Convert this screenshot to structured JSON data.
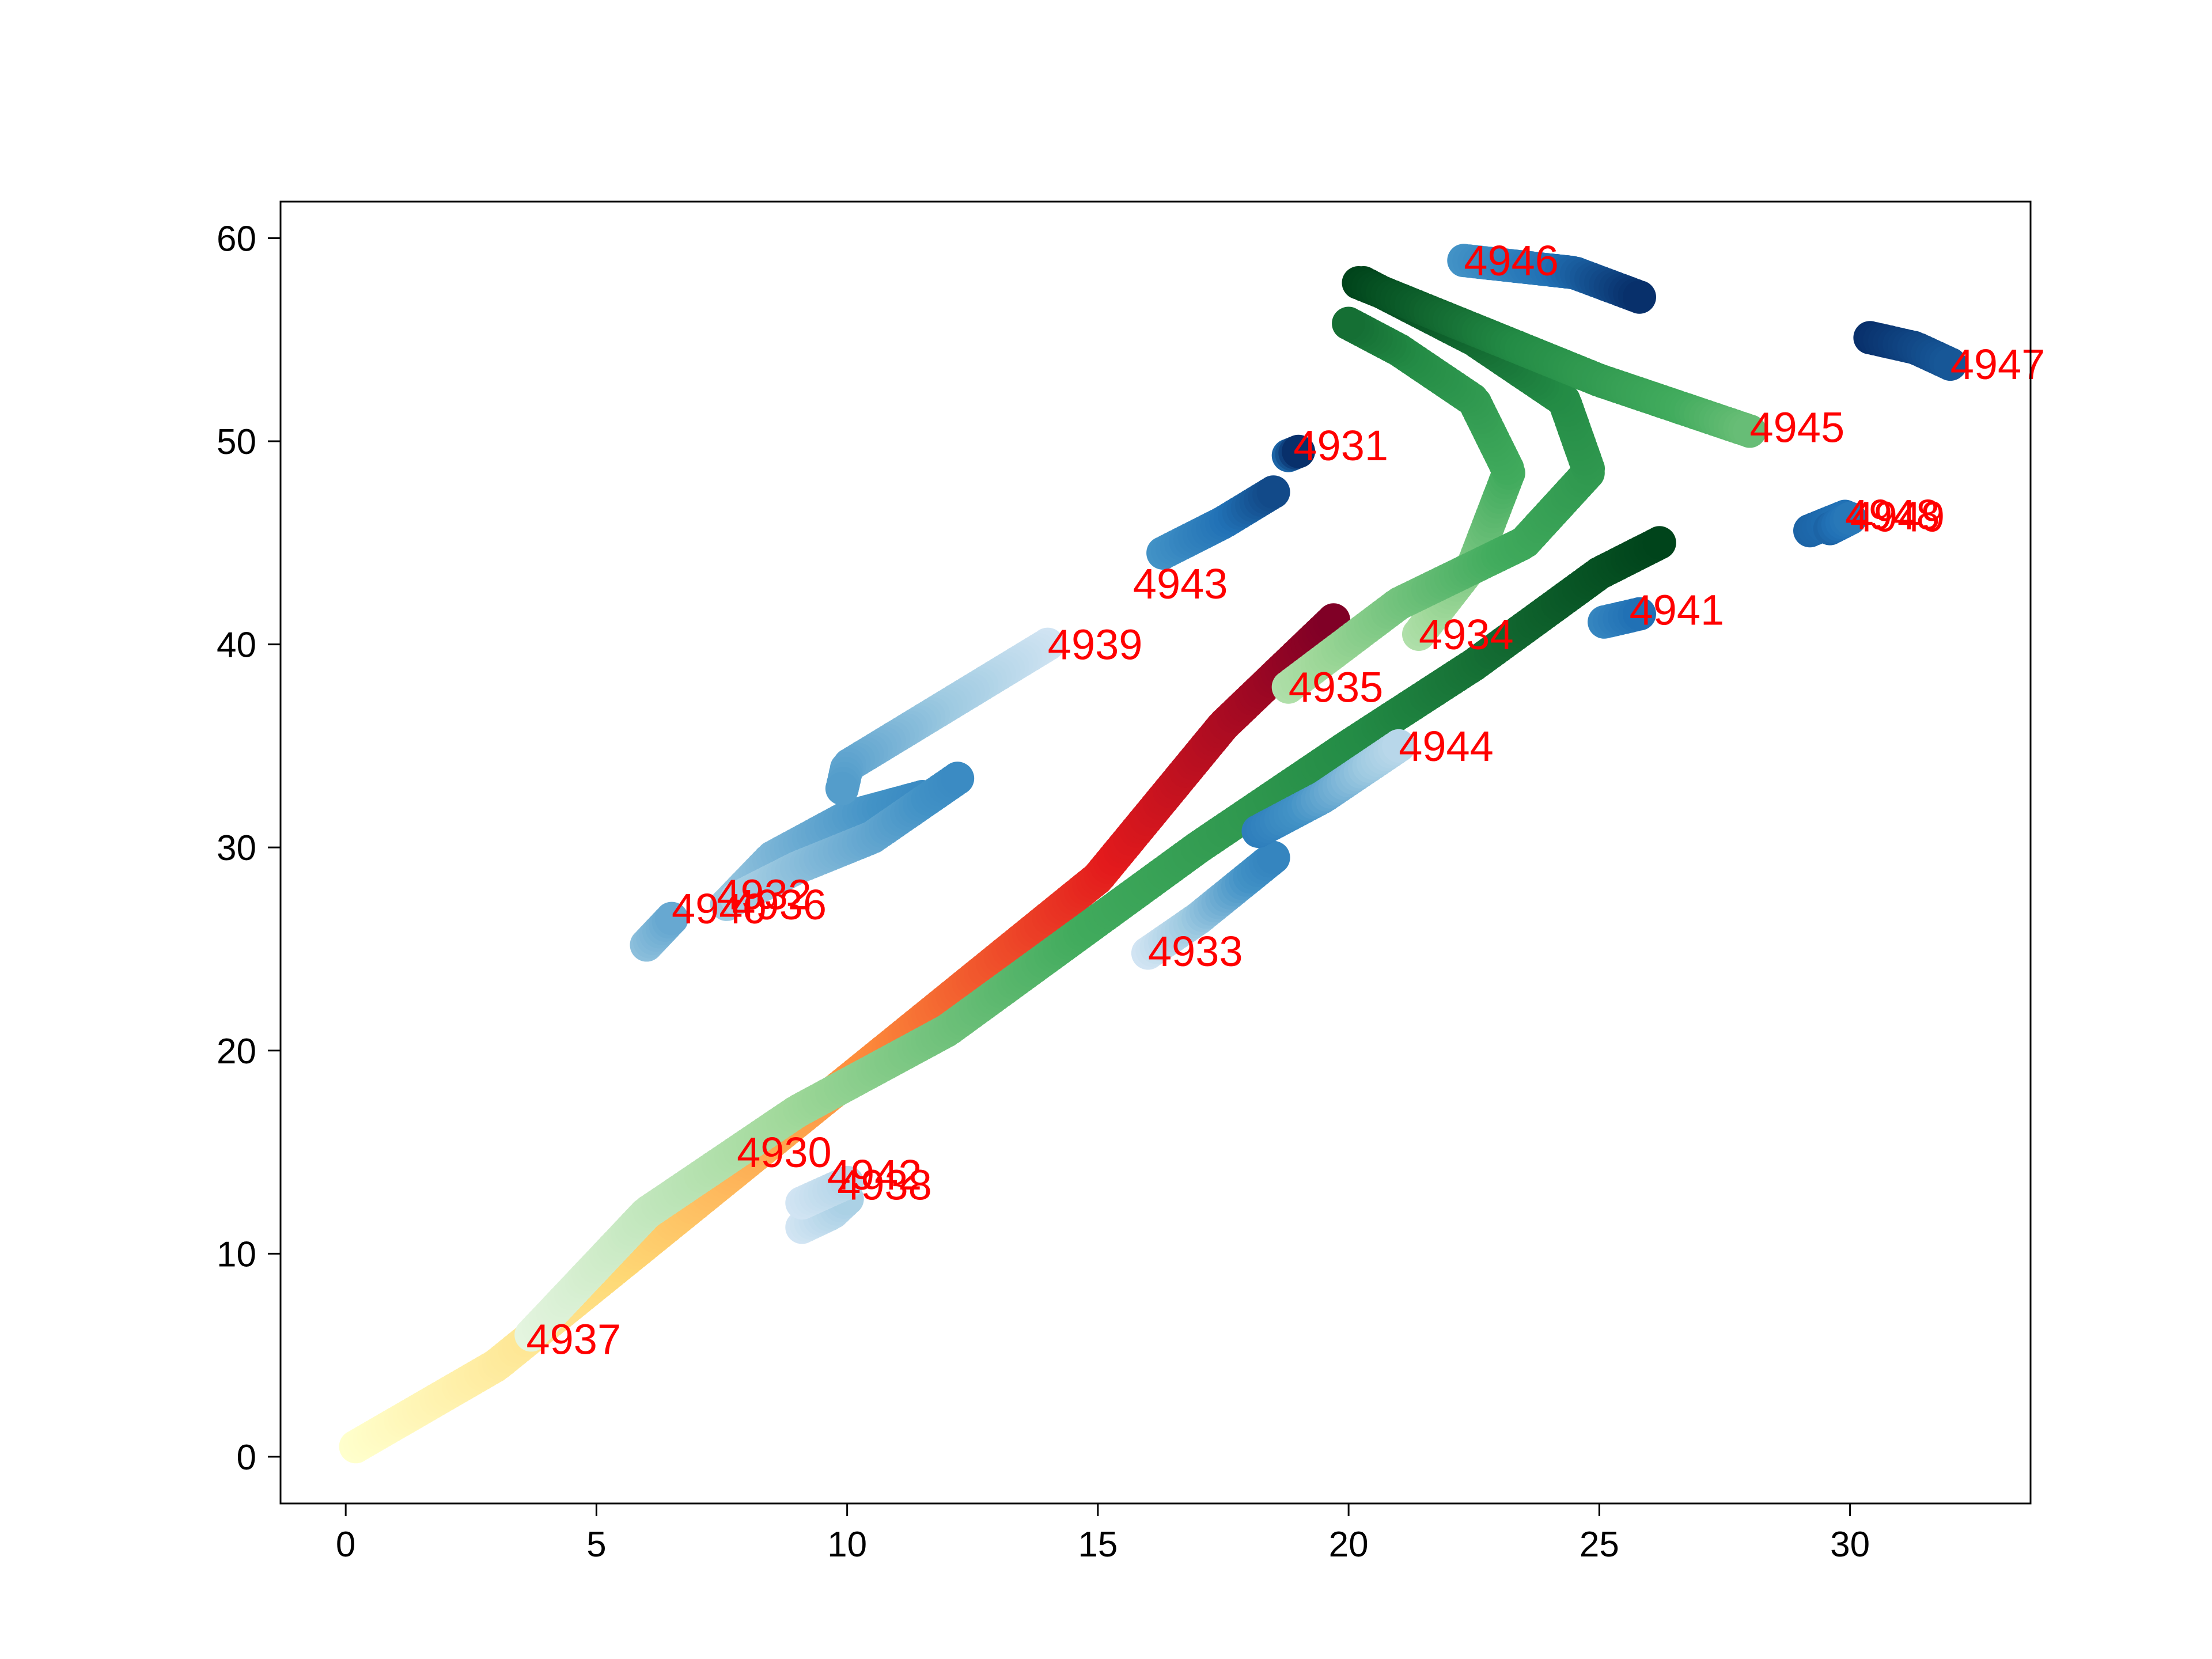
{
  "chart_data": {
    "type": "scatter",
    "title": "",
    "xlabel": "",
    "ylabel": "",
    "xlim": [
      -1.3,
      33.6
    ],
    "ylim": [
      -2.3,
      61.8
    ],
    "x_ticks": [
      0,
      5,
      10,
      15,
      20,
      25,
      30
    ],
    "y_ticks": [
      0,
      10,
      20,
      30,
      40,
      50,
      60
    ],
    "grid": false,
    "legend": "none",
    "label_color": "#ff0000",
    "colormaps": {
      "blues": [
        "#deebf7",
        "#9ecae1",
        "#4292c6",
        "#2171b5",
        "#08306b"
      ],
      "greens": [
        "#e5f5e0",
        "#a1d99b",
        "#41ab5d",
        "#238b45",
        "#00441b"
      ],
      "ylorrd": [
        "#ffffcc",
        "#fed976",
        "#fd8d3c",
        "#e31a1c",
        "#800026"
      ]
    },
    "tracks": [
      {
        "id": "4930",
        "cmap": "ylorrd",
        "c": [
          0.0,
          1.0
        ],
        "label_at": [
          7.8,
          15.0
        ],
        "points": [
          [
            0.2,
            0.5
          ],
          [
            3.0,
            4.5
          ],
          [
            6.0,
            10.5
          ],
          [
            9.0,
            16.5
          ],
          [
            12.0,
            22.5
          ],
          [
            15.0,
            28.5
          ],
          [
            17.5,
            36.0
          ],
          [
            19.7,
            41.2
          ]
        ]
      },
      {
        "id": "4931",
        "cmap": "blues",
        "c": [
          0.8,
          1.0
        ],
        "label_at": [
          18.9,
          49.8
        ],
        "points": [
          [
            18.8,
            49.3
          ],
          [
            19.0,
            49.5
          ]
        ]
      },
      {
        "id": "4932",
        "cmap": "blues",
        "c": [
          0.25,
          0.55
        ],
        "label_at": [
          7.4,
          27.7
        ],
        "points": [
          [
            7.6,
            27.2
          ],
          [
            8.5,
            29.5
          ],
          [
            10.0,
            31.5
          ],
          [
            11.5,
            32.5
          ]
        ]
      },
      {
        "id": "4933",
        "cmap": "blues",
        "c": [
          0.05,
          0.6
        ],
        "label_at": [
          16.0,
          24.9
        ],
        "points": [
          [
            16.0,
            24.8
          ],
          [
            17.0,
            26.5
          ],
          [
            18.0,
            28.5
          ],
          [
            18.5,
            29.5
          ]
        ]
      },
      {
        "id": "4934",
        "cmap": "greens",
        "c": [
          0.2,
          0.85
        ],
        "label_at": [
          21.4,
          40.5
        ],
        "points": [
          [
            21.4,
            40.5
          ],
          [
            22.5,
            44.0
          ],
          [
            23.2,
            48.5
          ],
          [
            22.5,
            52.0
          ],
          [
            21.0,
            54.5
          ],
          [
            20.0,
            55.8
          ]
        ]
      },
      {
        "id": "4935",
        "cmap": "greens",
        "c": [
          0.2,
          1.0
        ],
        "label_at": [
          18.8,
          37.9
        ],
        "points": [
          [
            18.8,
            37.9
          ],
          [
            21.0,
            42.0
          ],
          [
            23.5,
            45.0
          ],
          [
            24.8,
            48.5
          ],
          [
            24.3,
            52.0
          ],
          [
            22.5,
            55.0
          ],
          [
            20.3,
            57.8
          ]
        ]
      },
      {
        "id": "4936",
        "cmap": "blues",
        "c": [
          0.2,
          0.55
        ],
        "label_at": [
          7.7,
          27.2
        ],
        "points": [
          [
            7.8,
            27.5
          ],
          [
            9.0,
            29.0
          ],
          [
            10.5,
            30.5
          ],
          [
            12.2,
            33.4
          ]
        ]
      },
      {
        "id": "4937",
        "cmap": "greens",
        "c": [
          0.0,
          1.0
        ],
        "label_at": [
          3.6,
          5.8
        ],
        "points": [
          [
            3.7,
            6.0
          ],
          [
            6.0,
            12.0
          ],
          [
            9.0,
            17.0
          ],
          [
            12.0,
            21.0
          ],
          [
            14.5,
            25.5
          ],
          [
            17.0,
            30.0
          ],
          [
            20.0,
            35.0
          ],
          [
            22.5,
            39.0
          ],
          [
            25.0,
            43.5
          ],
          [
            26.2,
            45.0
          ]
        ]
      },
      {
        "id": "4938",
        "cmap": "blues",
        "c": [
          0.05,
          0.2
        ],
        "label_at": [
          9.8,
          13.4
        ],
        "points": [
          [
            9.1,
            11.3
          ],
          [
            9.7,
            12.0
          ],
          [
            10.0,
            12.7
          ]
        ]
      },
      {
        "id": "4939",
        "cmap": "blues",
        "c": [
          0.05,
          0.45
        ],
        "label_at": [
          14.0,
          40.0
        ],
        "points": [
          [
            14.0,
            40.0
          ],
          [
            12.0,
            37.0
          ],
          [
            10.0,
            34.0
          ],
          [
            9.9,
            32.9
          ]
        ]
      },
      {
        "id": "4940",
        "cmap": "blues",
        "c": [
          0.3,
          0.4
        ],
        "label_at": [
          6.5,
          27.0
        ],
        "points": [
          [
            6.0,
            25.2
          ],
          [
            6.5,
            26.5
          ]
        ]
      },
      {
        "id": "4941",
        "cmap": "blues",
        "c": [
          0.6,
          0.75
        ],
        "label_at": [
          25.6,
          41.7
        ],
        "points": [
          [
            25.1,
            41.1
          ],
          [
            25.8,
            41.5
          ]
        ]
      },
      {
        "id": "4942",
        "cmap": "blues",
        "c": [
          0.05,
          0.15
        ],
        "label_at": [
          9.6,
          13.9
        ],
        "points": [
          [
            9.1,
            12.5
          ],
          [
            10.0,
            13.5
          ]
        ]
      },
      {
        "id": "4943",
        "cmap": "blues",
        "c": [
          0.5,
          0.9
        ],
        "label_at": [
          15.7,
          43.0
        ],
        "points": [
          [
            16.3,
            44.5
          ],
          [
            17.5,
            46.0
          ],
          [
            18.5,
            47.5
          ]
        ]
      },
      {
        "id": "4944",
        "cmap": "blues",
        "c": [
          0.65,
          0.15
        ],
        "label_at": [
          21.0,
          35.0
        ],
        "points": [
          [
            18.2,
            30.8
          ],
          [
            19.5,
            32.5
          ],
          [
            21.0,
            35.0
          ]
        ]
      },
      {
        "id": "4945",
        "cmap": "greens",
        "c": [
          1.0,
          0.4
        ],
        "label_at": [
          28.0,
          50.7
        ],
        "points": [
          [
            20.2,
            57.8
          ],
          [
            22.5,
            55.5
          ],
          [
            25.0,
            53.0
          ],
          [
            28.0,
            50.5
          ]
        ]
      },
      {
        "id": "4946",
        "cmap": "blues",
        "c": [
          0.5,
          1.0
        ],
        "label_at": [
          22.3,
          58.9
        ],
        "points": [
          [
            22.3,
            58.9
          ],
          [
            24.5,
            58.3
          ],
          [
            25.8,
            57.1
          ]
        ]
      },
      {
        "id": "4947",
        "cmap": "blues",
        "c": [
          1.0,
          0.85
        ],
        "label_at": [
          32.0,
          53.8
        ],
        "points": [
          [
            30.4,
            55.1
          ],
          [
            31.3,
            54.6
          ],
          [
            32.0,
            53.8
          ]
        ]
      },
      {
        "id": "4948",
        "cmap": "blues",
        "c": [
          0.8,
          0.75
        ],
        "label_at": [
          29.9,
          46.4
        ],
        "points": [
          [
            29.2,
            45.6
          ],
          [
            29.9,
            46.3
          ]
        ]
      },
      {
        "id": "4949",
        "cmap": "blues",
        "c": [
          0.8,
          0.7
        ],
        "label_at": [
          30.0,
          46.3
        ],
        "points": [
          [
            29.6,
            45.7
          ],
          [
            30.0,
            46.2
          ]
        ]
      }
    ]
  }
}
